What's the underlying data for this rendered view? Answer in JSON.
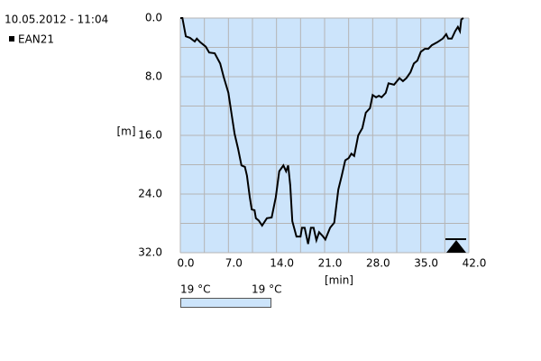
{
  "chart_data": {
    "type": "line",
    "title": "10.05.2012 - 11:04",
    "x_label": "[min]",
    "y_label": "[m]",
    "xlim": [
      0,
      42
    ],
    "ylim": [
      0,
      32
    ],
    "y_inverted": true,
    "grid": true,
    "background": "#cce4fb",
    "xticks": [
      {
        "value": 0,
        "label": "0.0"
      },
      {
        "value": 7,
        "label": "7.0"
      },
      {
        "value": 14,
        "label": "14.0"
      },
      {
        "value": 21,
        "label": "21.0"
      },
      {
        "value": 28,
        "label": "28.0"
      },
      {
        "value": 35,
        "label": "35.0"
      },
      {
        "value": 42,
        "label": "42.0"
      }
    ],
    "yticks": [
      {
        "value": 0,
        "label": "0.0"
      },
      {
        "value": 8,
        "label": "8.0"
      },
      {
        "value": 16,
        "label": "16.0"
      },
      {
        "value": 24,
        "label": "24.0"
      },
      {
        "value": 32,
        "label": "32.0"
      }
    ],
    "temperature_labels": [
      "19 °C",
      "19 °C"
    ],
    "series": [
      {
        "name": "EAN21",
        "color": "#000000",
        "x": [
          0,
          0.3,
          0.8,
          1.4,
          2.1,
          2.4,
          2.9,
          3.7,
          4.2,
          5.0,
          5.8,
          6.3,
          7.0,
          7.5,
          7.9,
          8.4,
          8.9,
          9.4,
          9.7,
          10.1,
          10.4,
          10.8,
          11.0,
          11.4,
          11.9,
          12.6,
          13.3,
          13.9,
          14.4,
          15.0,
          15.4,
          15.7,
          16.0,
          16.3,
          16.9,
          17.5,
          17.7,
          18.1,
          18.6,
          19.0,
          19.4,
          19.8,
          20.2,
          20.7,
          21.1,
          21.8,
          22.4,
          23.0,
          23.5,
          24.0,
          24.5,
          24.9,
          25.3,
          25.9,
          26.5,
          27.0,
          27.6,
          28.0,
          28.5,
          28.9,
          29.3,
          29.9,
          30.3,
          31.1,
          31.9,
          32.4,
          32.9,
          33.5,
          34.0,
          34.5,
          35.0,
          35.6,
          36.1,
          36.6,
          37.4,
          38.2,
          38.7,
          39.0,
          39.5,
          40.0,
          40.4,
          40.7,
          40.9,
          41.2
        ],
        "values": [
          0,
          0,
          2.5,
          2.7,
          3.2,
          2.8,
          3.3,
          3.9,
          4.7,
          4.8,
          6.2,
          8.0,
          10.2,
          13.3,
          15.8,
          17.8,
          20.1,
          20.3,
          21.5,
          24.4,
          26.1,
          26.2,
          27.3,
          27.6,
          28.3,
          27.3,
          27.2,
          24.4,
          20.9,
          20.1,
          20.9,
          20.1,
          22.8,
          27.7,
          29.8,
          29.8,
          28.6,
          28.6,
          30.8,
          28.6,
          28.6,
          30.3,
          29.2,
          29.7,
          30.2,
          28.6,
          27.9,
          23.4,
          21.5,
          19.4,
          19.1,
          18.5,
          18.8,
          16.0,
          15.0,
          12.9,
          12.3,
          10.5,
          10.8,
          10.6,
          10.8,
          10.2,
          8.9,
          9.1,
          8.2,
          8.6,
          8.2,
          7.4,
          6.2,
          5.8,
          4.6,
          4.2,
          4.2,
          3.7,
          3.3,
          2.8,
          2.2,
          2.8,
          2.8,
          1.8,
          1.2,
          1.8,
          0.2,
          0
        ]
      }
    ]
  }
}
